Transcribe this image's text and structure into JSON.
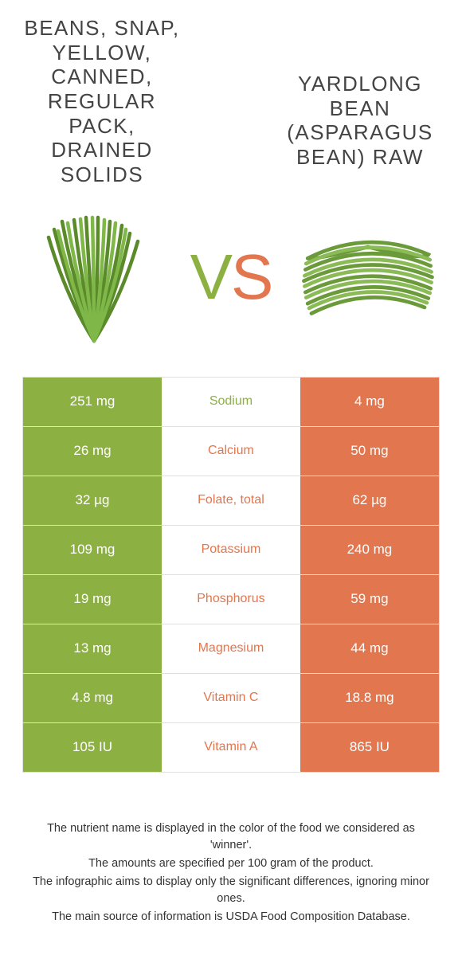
{
  "colors": {
    "left": "#8db043",
    "right": "#e2764e",
    "vs_v": "#8db043",
    "vs_s": "#e2764e"
  },
  "food_left": {
    "title": "BEANS, SNAP, YELLOW, CANNED, REGULAR PACK, DRAINED SOLIDS"
  },
  "food_right": {
    "title": "YARDLONG BEAN (ASPARAGUS BEAN) RAW"
  },
  "vs": {
    "v": "V",
    "s": "S"
  },
  "rows": [
    {
      "left": "251 mg",
      "label": "Sodium",
      "right": "4 mg",
      "winner": "left"
    },
    {
      "left": "26 mg",
      "label": "Calcium",
      "right": "50 mg",
      "winner": "right"
    },
    {
      "left": "32 µg",
      "label": "Folate, total",
      "right": "62 µg",
      "winner": "right"
    },
    {
      "left": "109 mg",
      "label": "Potassium",
      "right": "240 mg",
      "winner": "right"
    },
    {
      "left": "19 mg",
      "label": "Phosphorus",
      "right": "59 mg",
      "winner": "right"
    },
    {
      "left": "13 mg",
      "label": "Magnesium",
      "right": "44 mg",
      "winner": "right"
    },
    {
      "left": "4.8 mg",
      "label": "Vitamin C",
      "right": "18.8 mg",
      "winner": "right"
    },
    {
      "left": "105 IU",
      "label": "Vitamin A",
      "right": "865 IU",
      "winner": "right"
    }
  ],
  "footer": {
    "l1": "The nutrient name is displayed in the color of the food we considered as 'winner'.",
    "l2": "The amounts are specified per 100 gram of the product.",
    "l3": "The infographic aims to display only the significant differences, ignoring minor ones.",
    "l4": "The main source of information is USDA Food Composition Database."
  }
}
